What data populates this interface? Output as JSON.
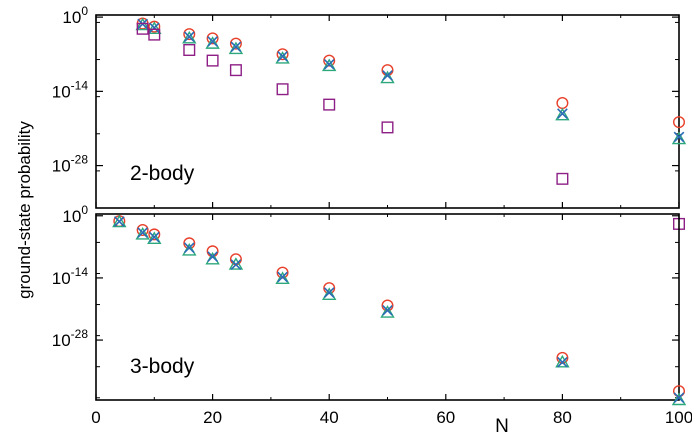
{
  "chart_data": [
    {
      "type": "scatter",
      "panel_label": "2-body",
      "yscale": "log",
      "ylim_exp": [
        -36,
        0.4
      ],
      "ytick_exponents": [
        0,
        -14,
        -28
      ],
      "xlim": [
        0,
        100
      ],
      "series": [
        {
          "marker": "circle",
          "color": "#e8402a",
          "points": [
            [
              8,
              -1.2
            ],
            [
              10,
              -1.8
            ],
            [
              16,
              -3.2
            ],
            [
              20,
              -4.0
            ],
            [
              24,
              -5.0
            ],
            [
              32,
              -7.0
            ],
            [
              40,
              -8.2
            ],
            [
              50,
              -10.0
            ],
            [
              80,
              -16.2
            ],
            [
              100,
              -19.8
            ]
          ]
        },
        {
          "marker": "triangle",
          "color": "#2ca87c",
          "points": [
            [
              8,
              -1.5
            ],
            [
              10,
              -2.2
            ],
            [
              16,
              -4.0
            ],
            [
              20,
              -5.0
            ],
            [
              24,
              -6.0
            ],
            [
              32,
              -7.8
            ],
            [
              40,
              -9.2
            ],
            [
              50,
              -11.5
            ],
            [
              80,
              -18.5
            ],
            [
              100,
              -23.0
            ]
          ]
        },
        {
          "marker": "x",
          "color": "#2b6bb5",
          "points": [
            [
              8,
              -1.3
            ],
            [
              10,
              -2.0
            ],
            [
              16,
              -3.7
            ],
            [
              20,
              -4.6
            ],
            [
              24,
              -5.6
            ],
            [
              32,
              -7.4
            ],
            [
              40,
              -8.9
            ],
            [
              50,
              -11.0
            ],
            [
              80,
              -18.2
            ],
            [
              100,
              -22.6
            ]
          ]
        },
        {
          "marker": "square",
          "color": "#8e1f86",
          "points": [
            [
              8,
              -2.2
            ],
            [
              10,
              -3.3
            ],
            [
              16,
              -6.2
            ],
            [
              20,
              -8.2
            ],
            [
              24,
              -10.0
            ],
            [
              32,
              -13.6
            ],
            [
              40,
              -16.5
            ],
            [
              50,
              -20.8
            ],
            [
              80,
              -30.5
            ],
            [
              100,
              -39.0
            ]
          ]
        }
      ]
    },
    {
      "type": "scatter",
      "panel_label": "3-body",
      "yscale": "log",
      "ylim_exp": [
        -41.5,
        0.4
      ],
      "ytick_exponents": [
        0,
        -14,
        -28
      ],
      "xlim": [
        0,
        100
      ],
      "xlabel": "N",
      "xticks": [
        0,
        20,
        40,
        60,
        80,
        100
      ],
      "series": [
        {
          "marker": "circle",
          "color": "#e8402a",
          "points": [
            [
              4,
              -1.2
            ],
            [
              8,
              -3.2
            ],
            [
              10,
              -4.2
            ],
            [
              16,
              -6.2
            ],
            [
              20,
              -8.0
            ],
            [
              24,
              -9.8
            ],
            [
              32,
              -12.8
            ],
            [
              40,
              -16.3
            ],
            [
              50,
              -20.2
            ],
            [
              80,
              -32.0
            ],
            [
              100,
              -39.5
            ]
          ]
        },
        {
          "marker": "triangle",
          "color": "#2ca87c",
          "points": [
            [
              4,
              -1.4
            ],
            [
              8,
              -4.2
            ],
            [
              10,
              -5.2
            ],
            [
              16,
              -7.8
            ],
            [
              20,
              -9.8
            ],
            [
              24,
              -11.0
            ],
            [
              32,
              -14.2
            ],
            [
              40,
              -17.8
            ],
            [
              50,
              -21.8
            ],
            [
              80,
              -33.0
            ],
            [
              100,
              -41.5
            ]
          ]
        },
        {
          "marker": "x",
          "color": "#2b6bb5",
          "points": [
            [
              4,
              -1.3
            ],
            [
              8,
              -3.8
            ],
            [
              10,
              -4.8
            ],
            [
              16,
              -7.2
            ],
            [
              20,
              -9.2
            ],
            [
              24,
              -11.0
            ],
            [
              32,
              -13.8
            ],
            [
              40,
              -17.3
            ],
            [
              50,
              -21.3
            ],
            [
              80,
              -33.0
            ],
            [
              100,
              -41.0
            ]
          ]
        }
      ]
    }
  ],
  "ylabel": "ground-state probability",
  "ytick_base": "10"
}
